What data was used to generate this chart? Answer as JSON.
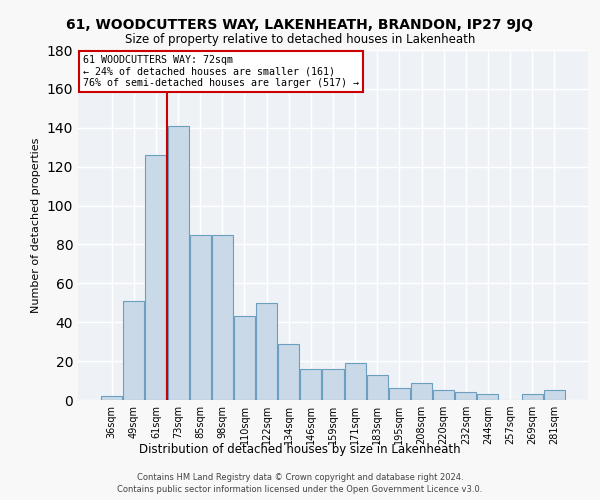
{
  "title": "61, WOODCUTTERS WAY, LAKENHEATH, BRANDON, IP27 9JQ",
  "subtitle": "Size of property relative to detached houses in Lakenheath",
  "xlabel": "Distribution of detached houses by size in Lakenheath",
  "ylabel": "Number of detached properties",
  "bar_labels": [
    "36sqm",
    "49sqm",
    "61sqm",
    "73sqm",
    "85sqm",
    "98sqm",
    "110sqm",
    "122sqm",
    "134sqm",
    "146sqm",
    "159sqm",
    "171sqm",
    "183sqm",
    "195sqm",
    "208sqm",
    "220sqm",
    "232sqm",
    "244sqm",
    "257sqm",
    "269sqm",
    "281sqm"
  ],
  "bar_values": [
    2,
    51,
    126,
    141,
    85,
    85,
    43,
    50,
    29,
    16,
    16,
    19,
    13,
    6,
    9,
    5,
    4,
    3,
    0,
    3,
    5
  ],
  "bar_color": "#c9d9e8",
  "bar_edge_color": "#6a9fc0",
  "vline_index": 2.5,
  "vline_color": "#cc0000",
  "annotation_text": "61 WOODCUTTERS WAY: 72sqm\n← 24% of detached houses are smaller (161)\n76% of semi-detached houses are larger (517) →",
  "annotation_box_color": "#ffffff",
  "annotation_box_edge": "#cc0000",
  "ylim": [
    0,
    180
  ],
  "yticks": [
    0,
    20,
    40,
    60,
    80,
    100,
    120,
    140,
    160,
    180
  ],
  "bg_color": "#eef2f7",
  "grid_color": "#ffffff",
  "footer1": "Contains HM Land Registry data © Crown copyright and database right 2024.",
  "footer2": "Contains public sector information licensed under the Open Government Licence v3.0."
}
